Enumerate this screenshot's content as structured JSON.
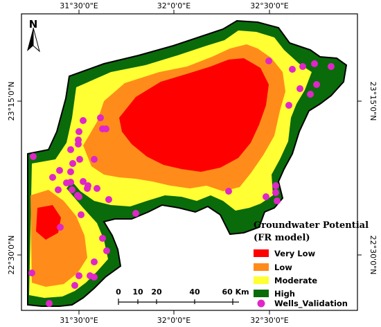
{
  "map": {
    "top_ticks": [
      "31°30'0\"E",
      "32°0'0\"E",
      "32°30'0\"E"
    ],
    "bottom_ticks": [
      "31°30'0\"E",
      "32°0'0\"E",
      "32°30'0\"E"
    ],
    "left_ticks": [
      "23°15'0\"N",
      "22°30'0\"N"
    ],
    "right_ticks": [
      "23°15'0\"N",
      "22°30'0\"N"
    ],
    "north_arrow": {
      "label": "N",
      "icon": "north-arrow-icon"
    }
  },
  "legend": {
    "title_line1": "Groundwater Potential",
    "title_line2": "(FR model)",
    "items": [
      {
        "label": "Very Low",
        "color": "#ff0000"
      },
      {
        "label": "Low",
        "color": "#ff8c1a"
      },
      {
        "label": "Moderate",
        "color": "#ffff33"
      },
      {
        "label": "High",
        "color": "#0a6b0a"
      },
      {
        "label": "Wells_Validation",
        "color": "#e026c8"
      }
    ]
  },
  "scale_bar": {
    "labels": [
      "0",
      "10",
      "20",
      "40",
      "60 Km"
    ]
  }
}
